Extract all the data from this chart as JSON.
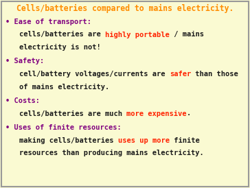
{
  "title": "Cells/batteries compared to mains electricity.",
  "title_color": "#FF8C00",
  "bg_color": "#FAFAD2",
  "border_color": "#999999",
  "font_family": "monospace",
  "sections": [
    {
      "bullet": "Ease of transport:",
      "bullet_color": "#800080",
      "lines": [
        [
          {
            "text": "cells/batteries are ",
            "color": "#1a1a1a"
          },
          {
            "text": "highly portable",
            "color": "#FF2200"
          },
          {
            "text": " / mains",
            "color": "#1a1a1a"
          }
        ],
        [
          {
            "text": "electricity is not!",
            "color": "#1a1a1a"
          }
        ]
      ]
    },
    {
      "bullet": "Safety:",
      "bullet_color": "#800080",
      "lines": [
        [
          {
            "text": "cell/battery voltages/currents are ",
            "color": "#1a1a1a"
          },
          {
            "text": "safer",
            "color": "#FF2200"
          },
          {
            "text": " than those",
            "color": "#1a1a1a"
          }
        ],
        [
          {
            "text": "of mains electricity.",
            "color": "#1a1a1a"
          }
        ]
      ]
    },
    {
      "bullet": "Costs:",
      "bullet_color": "#800080",
      "lines": [
        [
          {
            "text": "cells/batteries are much ",
            "color": "#1a1a1a"
          },
          {
            "text": "more expensive",
            "color": "#FF2200"
          },
          {
            "text": ".",
            "color": "#1a1a1a"
          }
        ]
      ]
    },
    {
      "bullet": "Uses of finite resources:",
      "bullet_color": "#800080",
      "lines": [
        [
          {
            "text": "making cells/batteries ",
            "color": "#1a1a1a"
          },
          {
            "text": "uses up more",
            "color": "#FF2200"
          },
          {
            "text": " finite",
            "color": "#1a1a1a"
          }
        ],
        [
          {
            "text": "resources than producing mains electricity.",
            "color": "#1a1a1a"
          }
        ]
      ]
    }
  ]
}
